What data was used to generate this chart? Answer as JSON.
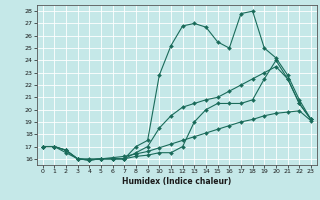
{
  "xlabel": "Humidex (Indice chaleur)",
  "background_color": "#c5e8e8",
  "grid_color": "#ffffff",
  "line_color": "#1a6b5a",
  "x_values": [
    0,
    1,
    2,
    3,
    4,
    5,
    6,
    7,
    8,
    9,
    10,
    11,
    12,
    13,
    14,
    15,
    16,
    17,
    18,
    19,
    20,
    21,
    22,
    23
  ],
  "series3": [
    17,
    17,
    16.7,
    16,
    15.9,
    16,
    16,
    16,
    17.0,
    17.5,
    22.8,
    25.2,
    26.8,
    27.0,
    26.7,
    25.5,
    25.0,
    27.8,
    28.0,
    25.0,
    24.2,
    22.8,
    20.8,
    19.2
  ],
  "series2": [
    17,
    17,
    16.7,
    16,
    15.9,
    16,
    16,
    16,
    16.5,
    17.0,
    18.5,
    19.5,
    20.2,
    20.5,
    20.8,
    21.0,
    21.5,
    22.0,
    22.5,
    23.0,
    23.5,
    22.5,
    20.5,
    19.2
  ],
  "series1": [
    17,
    17,
    16.7,
    16,
    15.9,
    16,
    16,
    16,
    16.2,
    16.3,
    16.5,
    16.5,
    17.0,
    19.0,
    20.0,
    20.5,
    20.5,
    20.5,
    20.8,
    22.5,
    24.0,
    22.5,
    20.5,
    19.2
  ],
  "series4": [
    17,
    17.0,
    16.5,
    16.0,
    16.0,
    16.0,
    16.1,
    16.2,
    16.4,
    16.6,
    16.9,
    17.2,
    17.5,
    17.8,
    18.1,
    18.4,
    18.7,
    19.0,
    19.2,
    19.5,
    19.7,
    19.8,
    19.9,
    19.1
  ],
  "xlim": [
    -0.5,
    23.5
  ],
  "ylim": [
    15.5,
    28.5
  ],
  "yticks": [
    16,
    17,
    18,
    19,
    20,
    21,
    22,
    23,
    24,
    25,
    26,
    27,
    28
  ],
  "xticks": [
    0,
    1,
    2,
    3,
    4,
    5,
    6,
    7,
    8,
    9,
    10,
    11,
    12,
    13,
    14,
    15,
    16,
    17,
    18,
    19,
    20,
    21,
    22,
    23
  ]
}
